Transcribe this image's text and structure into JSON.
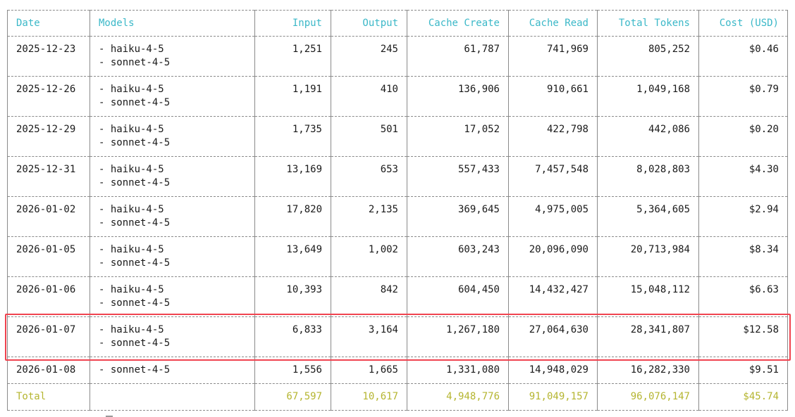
{
  "table": {
    "headers": [
      "Date",
      "Models",
      "Input",
      "Output",
      "Cache Create",
      "Cache Read",
      "Total Tokens",
      "Cost (USD)"
    ],
    "rows": [
      {
        "date": "2025-12-23",
        "models": [
          "- haiku-4-5",
          "- sonnet-4-5"
        ],
        "input": "1,251",
        "output": "245",
        "cache_create": "61,787",
        "cache_read": "741,969",
        "total_tokens": "805,252",
        "cost": "$0.46"
      },
      {
        "date": "2025-12-26",
        "models": [
          "- haiku-4-5",
          "- sonnet-4-5"
        ],
        "input": "1,191",
        "output": "410",
        "cache_create": "136,906",
        "cache_read": "910,661",
        "total_tokens": "1,049,168",
        "cost": "$0.79"
      },
      {
        "date": "2025-12-29",
        "models": [
          "- haiku-4-5",
          "- sonnet-4-5"
        ],
        "input": "1,735",
        "output": "501",
        "cache_create": "17,052",
        "cache_read": "422,798",
        "total_tokens": "442,086",
        "cost": "$0.20"
      },
      {
        "date": "2025-12-31",
        "models": [
          "- haiku-4-5",
          "- sonnet-4-5"
        ],
        "input": "13,169",
        "output": "653",
        "cache_create": "557,433",
        "cache_read": "7,457,548",
        "total_tokens": "8,028,803",
        "cost": "$4.30"
      },
      {
        "date": "2026-01-02",
        "models": [
          "- haiku-4-5",
          "- sonnet-4-5"
        ],
        "input": "17,820",
        "output": "2,135",
        "cache_create": "369,645",
        "cache_read": "4,975,005",
        "total_tokens": "5,364,605",
        "cost": "$2.94"
      },
      {
        "date": "2026-01-05",
        "models": [
          "- haiku-4-5",
          "- sonnet-4-5"
        ],
        "input": "13,649",
        "output": "1,002",
        "cache_create": "603,243",
        "cache_read": "20,096,090",
        "total_tokens": "20,713,984",
        "cost": "$8.34"
      },
      {
        "date": "2026-01-06",
        "models": [
          "- haiku-4-5",
          "- sonnet-4-5"
        ],
        "input": "10,393",
        "output": "842",
        "cache_create": "604,450",
        "cache_read": "14,432,427",
        "total_tokens": "15,048,112",
        "cost": "$6.63"
      },
      {
        "date": "2026-01-07",
        "models": [
          "- haiku-4-5",
          "- sonnet-4-5"
        ],
        "input": "6,833",
        "output": "3,164",
        "cache_create": "1,267,180",
        "cache_read": "27,064,630",
        "total_tokens": "28,341,807",
        "cost": "$12.58",
        "highlighted": true
      },
      {
        "date": "2026-01-08",
        "models": [
          "- sonnet-4-5"
        ],
        "input": "1,556",
        "output": "1,665",
        "cache_create": "1,331,080",
        "cache_read": "14,948,029",
        "total_tokens": "16,282,330",
        "cost": "$9.51"
      }
    ],
    "total": {
      "label": "Total",
      "models": "",
      "input": "67,597",
      "output": "10,617",
      "cache_create": "4,948,776",
      "cache_read": "91,049,157",
      "total_tokens": "96,076,147",
      "cost": "$45.74"
    }
  },
  "colors": {
    "header_text": "#3bb8c8",
    "total_text": "#b5b530",
    "highlight_border": "#f0434f",
    "grid_border": "#8a8a8a"
  }
}
